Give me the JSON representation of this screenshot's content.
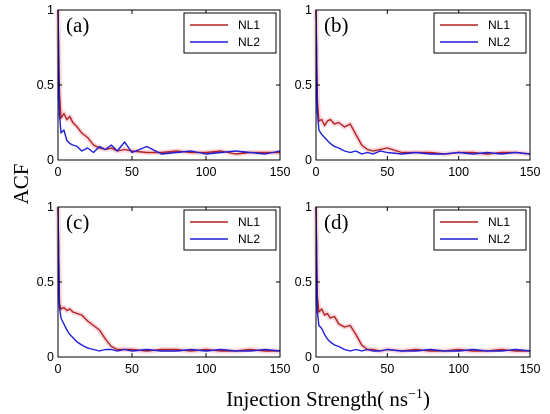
{
  "figure": {
    "ylabel": "ACF",
    "xlabel": "Injection Strength( ns",
    "xlabel_sup": "−1",
    "xlabel_close": ")"
  },
  "series_colors": {
    "NL1": "#b22222",
    "NL2": "#1f1fd6"
  },
  "chart_data": [
    {
      "type": "line",
      "panel_label": "(a)",
      "xlim": [
        0,
        150
      ],
      "ylim": [
        0,
        1
      ],
      "xticks": [
        0,
        50,
        100,
        150
      ],
      "yticks": [
        0,
        0.5,
        1
      ],
      "xtick_labels": [
        "0",
        "50",
        "100",
        "150"
      ],
      "ytick_labels": [
        "0",
        "0.5",
        "1"
      ],
      "legend_position": "top-right",
      "series": [
        {
          "name": "NL1",
          "x": [
            0,
            1,
            2,
            4,
            6,
            8,
            10,
            13,
            16,
            20,
            24,
            28,
            32,
            36,
            40,
            45,
            50,
            60,
            70,
            80,
            90,
            100,
            110,
            120,
            130,
            140,
            150
          ],
          "y": [
            1.0,
            0.45,
            0.28,
            0.31,
            0.27,
            0.29,
            0.25,
            0.22,
            0.18,
            0.15,
            0.1,
            0.08,
            0.07,
            0.08,
            0.06,
            0.07,
            0.06,
            0.05,
            0.05,
            0.06,
            0.05,
            0.05,
            0.06,
            0.04,
            0.05,
            0.05,
            0.05
          ]
        },
        {
          "name": "NL2",
          "x": [
            0,
            1,
            2,
            4,
            6,
            8,
            10,
            13,
            16,
            20,
            24,
            28,
            32,
            36,
            40,
            45,
            50,
            60,
            70,
            80,
            90,
            100,
            110,
            120,
            130,
            140,
            150
          ],
          "y": [
            1.0,
            0.3,
            0.18,
            0.2,
            0.13,
            0.11,
            0.1,
            0.09,
            0.06,
            0.08,
            0.05,
            0.09,
            0.07,
            0.1,
            0.06,
            0.12,
            0.05,
            0.09,
            0.04,
            0.05,
            0.06,
            0.04,
            0.05,
            0.06,
            0.05,
            0.04,
            0.06
          ]
        }
      ]
    },
    {
      "type": "line",
      "panel_label": "(b)",
      "xlim": [
        0,
        150
      ],
      "ylim": [
        0,
        1
      ],
      "xticks": [
        0,
        50,
        100,
        150
      ],
      "yticks": [
        0,
        0.5,
        1
      ],
      "xtick_labels": [
        "0",
        "50",
        "100",
        "150"
      ],
      "ytick_labels": [
        "0",
        "0.5",
        "1"
      ],
      "legend_position": "top-right",
      "series": [
        {
          "name": "NL1",
          "x": [
            0,
            1,
            2,
            4,
            6,
            8,
            10,
            13,
            16,
            20,
            24,
            28,
            32,
            36,
            40,
            45,
            50,
            60,
            70,
            80,
            90,
            100,
            110,
            120,
            130,
            140,
            150
          ],
          "y": [
            1.0,
            0.4,
            0.26,
            0.27,
            0.23,
            0.26,
            0.27,
            0.24,
            0.25,
            0.22,
            0.24,
            0.17,
            0.1,
            0.07,
            0.06,
            0.07,
            0.08,
            0.05,
            0.05,
            0.05,
            0.04,
            0.05,
            0.05,
            0.04,
            0.05,
            0.05,
            0.04
          ]
        },
        {
          "name": "NL2",
          "x": [
            0,
            1,
            2,
            4,
            6,
            8,
            10,
            13,
            16,
            20,
            24,
            28,
            32,
            36,
            40,
            45,
            50,
            60,
            70,
            80,
            90,
            100,
            110,
            120,
            130,
            140,
            150
          ],
          "y": [
            1.0,
            0.32,
            0.2,
            0.17,
            0.15,
            0.13,
            0.11,
            0.09,
            0.08,
            0.06,
            0.05,
            0.06,
            0.04,
            0.05,
            0.04,
            0.06,
            0.05,
            0.04,
            0.05,
            0.04,
            0.04,
            0.05,
            0.04,
            0.05,
            0.04,
            0.05,
            0.04
          ]
        }
      ]
    },
    {
      "type": "line",
      "panel_label": "(c)",
      "xlim": [
        0,
        150
      ],
      "ylim": [
        0,
        1
      ],
      "xticks": [
        0,
        50,
        100,
        150
      ],
      "yticks": [
        0,
        0.5,
        1
      ],
      "xtick_labels": [
        "0",
        "50",
        "100",
        "150"
      ],
      "ytick_labels": [
        "0",
        "0.5",
        "1"
      ],
      "legend_position": "top-right",
      "series": [
        {
          "name": "NL1",
          "x": [
            0,
            1,
            2,
            4,
            6,
            8,
            10,
            13,
            16,
            20,
            24,
            28,
            32,
            36,
            40,
            45,
            50,
            60,
            70,
            80,
            90,
            100,
            110,
            120,
            130,
            140,
            150
          ],
          "y": [
            1.0,
            0.36,
            0.32,
            0.33,
            0.31,
            0.32,
            0.3,
            0.29,
            0.28,
            0.24,
            0.21,
            0.18,
            0.12,
            0.07,
            0.05,
            0.05,
            0.05,
            0.04,
            0.05,
            0.05,
            0.04,
            0.05,
            0.04,
            0.04,
            0.05,
            0.04,
            0.04
          ]
        },
        {
          "name": "NL2",
          "x": [
            0,
            1,
            2,
            4,
            6,
            8,
            10,
            13,
            16,
            20,
            24,
            28,
            32,
            36,
            40,
            45,
            50,
            60,
            70,
            80,
            90,
            100,
            110,
            120,
            130,
            140,
            150
          ],
          "y": [
            1.0,
            0.33,
            0.26,
            0.22,
            0.18,
            0.15,
            0.13,
            0.1,
            0.08,
            0.06,
            0.05,
            0.04,
            0.05,
            0.05,
            0.04,
            0.05,
            0.04,
            0.05,
            0.04,
            0.04,
            0.05,
            0.04,
            0.05,
            0.04,
            0.04,
            0.05,
            0.04
          ]
        }
      ]
    },
    {
      "type": "line",
      "panel_label": "(d)",
      "xlim": [
        0,
        150
      ],
      "ylim": [
        0,
        1
      ],
      "xticks": [
        0,
        50,
        100,
        150
      ],
      "yticks": [
        0,
        0.5,
        1
      ],
      "xtick_labels": [
        "0",
        "50",
        "100",
        "150"
      ],
      "ytick_labels": [
        "0",
        "0.5",
        "1"
      ],
      "legend_position": "top-right",
      "series": [
        {
          "name": "NL1",
          "x": [
            0,
            1,
            2,
            4,
            6,
            8,
            10,
            13,
            16,
            20,
            24,
            28,
            32,
            36,
            40,
            45,
            50,
            60,
            70,
            80,
            90,
            100,
            110,
            120,
            130,
            140,
            150
          ],
          "y": [
            1.0,
            0.4,
            0.3,
            0.32,
            0.28,
            0.29,
            0.26,
            0.27,
            0.22,
            0.2,
            0.21,
            0.15,
            0.08,
            0.05,
            0.05,
            0.04,
            0.05,
            0.04,
            0.05,
            0.04,
            0.04,
            0.05,
            0.04,
            0.04,
            0.05,
            0.04,
            0.04
          ]
        },
        {
          "name": "NL2",
          "x": [
            0,
            1,
            2,
            4,
            6,
            8,
            10,
            13,
            16,
            20,
            24,
            28,
            32,
            36,
            40,
            45,
            50,
            60,
            70,
            80,
            90,
            100,
            110,
            120,
            130,
            140,
            150
          ],
          "y": [
            1.0,
            0.3,
            0.21,
            0.19,
            0.15,
            0.12,
            0.1,
            0.08,
            0.07,
            0.05,
            0.04,
            0.05,
            0.04,
            0.05,
            0.04,
            0.04,
            0.05,
            0.04,
            0.04,
            0.05,
            0.04,
            0.04,
            0.05,
            0.04,
            0.04,
            0.05,
            0.04
          ]
        }
      ]
    }
  ]
}
